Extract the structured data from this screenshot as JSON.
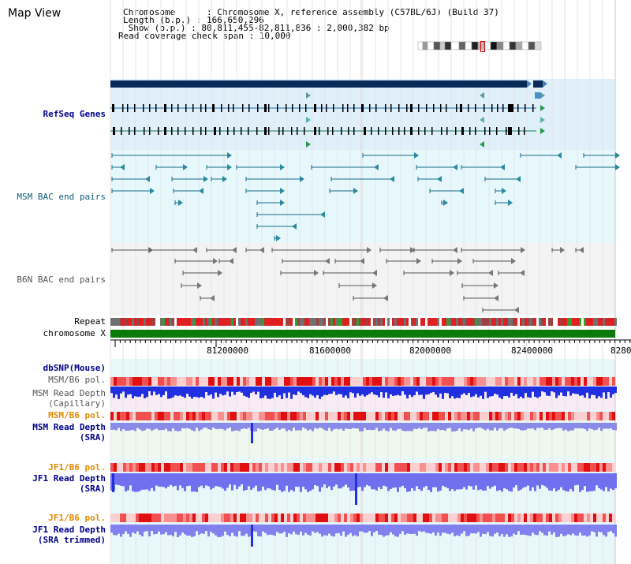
{
  "page": {
    "title": "Map View"
  },
  "info": {
    "chromosome_line": "Chromosome      : Chromosome X, reference assembly (C57BL/6J) (Build 37)",
    "length_line": "Length (b.p.) : 166,650,296",
    "show_line": " Show (b.p.) : 80,811,455-82,811,836 : 2,000,382 bp",
    "span_line": "Read coverage check span : 10,000"
  },
  "tracks": {
    "refseq": "RefSeq Genes",
    "msm_bac": "MSM BAC end pairs",
    "b6n_bac": "B6N BAC end pairs",
    "repeat": "Repeat",
    "chromosome": "chromosome X",
    "dbsnp": "dbSNP(Mouse)",
    "msm_b6_pol_1": "MSM/B6 pol.",
    "msm_depth_cap_1": "MSM Read Depth",
    "msm_depth_cap_2": "(Capillary)",
    "msm_b6_pol_2": "MSM/B6 pol.",
    "msm_depth_sra_1": "MSM Read Depth",
    "msm_depth_sra_2": "(SRA)",
    "jf1_b6_pol_1": "JF1/B6 pol.",
    "jf1_depth_sra_1": "JF1 Read Depth",
    "jf1_depth_sra_2": "(SRA)",
    "jf1_b6_pol_2": "JF1/B6 pol.",
    "jf1_depth_trim_1": "JF1 Read Depth",
    "jf1_depth_trim_2": "(SRA trimmed)"
  },
  "axis": {
    "ticks": [
      "81200000",
      "81600000",
      "82000000",
      "82400000",
      "8280"
    ]
  },
  "colors": {
    "refseq_bg": "#dff0fb",
    "msm_bg": "#e6f8fb",
    "b6n_bg": "#f3f3f3",
    "chromosome_bar": "#0a7a0a",
    "gene_dark": "#0a2a5a",
    "depth_blue": "#2030e0",
    "depth_light": "#8080ee"
  }
}
